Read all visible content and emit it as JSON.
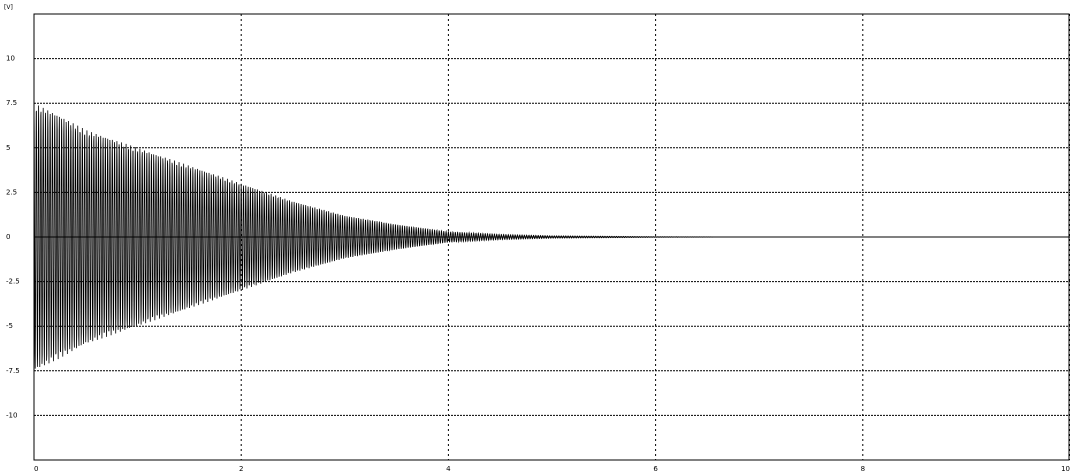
{
  "chart_data": {
    "type": "line",
    "title": "",
    "unit_label": "[V]",
    "xlabel": "",
    "ylabel": "",
    "xlim": [
      0,
      10
    ],
    "ylim": [
      -12.5,
      12.5
    ],
    "x_ticks": [
      {
        "value": 0,
        "label": "0"
      },
      {
        "value": 2,
        "label": "2"
      },
      {
        "value": 4,
        "label": "4"
      },
      {
        "value": 6,
        "label": "6"
      },
      {
        "value": 8,
        "label": "8"
      },
      {
        "value": 10,
        "label": "10"
      }
    ],
    "y_ticks": [
      {
        "value": 10,
        "label": "10"
      },
      {
        "value": 7.5,
        "label": "7.5"
      },
      {
        "value": 5,
        "label": "5"
      },
      {
        "value": 2.5,
        "label": "2.5"
      },
      {
        "value": 0,
        "label": "0"
      },
      {
        "value": -2.5,
        "label": "-2.5"
      },
      {
        "value": -5,
        "label": "-5"
      },
      {
        "value": -7.5,
        "label": "-7.5"
      },
      {
        "value": -10,
        "label": "-10"
      }
    ],
    "grid": true,
    "series": [
      {
        "description": "decaying oscillation, envelope amplitude vs time",
        "envelope": {
          "x": [
            0,
            0.25,
            0.5,
            1.0,
            1.5,
            2.0,
            2.5,
            3.0,
            3.5,
            4.0,
            4.5,
            5.0,
            6.0,
            7.0
          ],
          "amplitude": [
            7.5,
            6.8,
            6.0,
            5.0,
            4.0,
            3.0,
            2.0,
            1.2,
            0.7,
            0.3,
            0.15,
            0.07,
            0.02,
            0.0
          ]
        },
        "oscillation_periods_per_unit": 45,
        "color": "#000000"
      }
    ]
  }
}
